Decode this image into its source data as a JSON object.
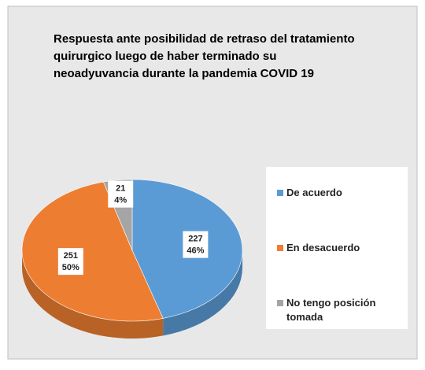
{
  "chart_data": {
    "type": "pie",
    "title": [
      "Respuesta ante posibilidad de retraso del tratamiento",
      "quirurgico  luego de haber terminado su",
      "neoadyuvancia durante la pandemia COVID 19"
    ],
    "categories": [
      "De acuerdo",
      "En desacuerdo",
      "No tengo posición tomada"
    ],
    "values": [
      227,
      251,
      21
    ],
    "percent_labels": [
      "46%",
      "50%",
      "4%"
    ],
    "colors": [
      "#5b9bd5",
      "#ed7d31",
      "#a5a5a5"
    ],
    "legend": "right"
  }
}
